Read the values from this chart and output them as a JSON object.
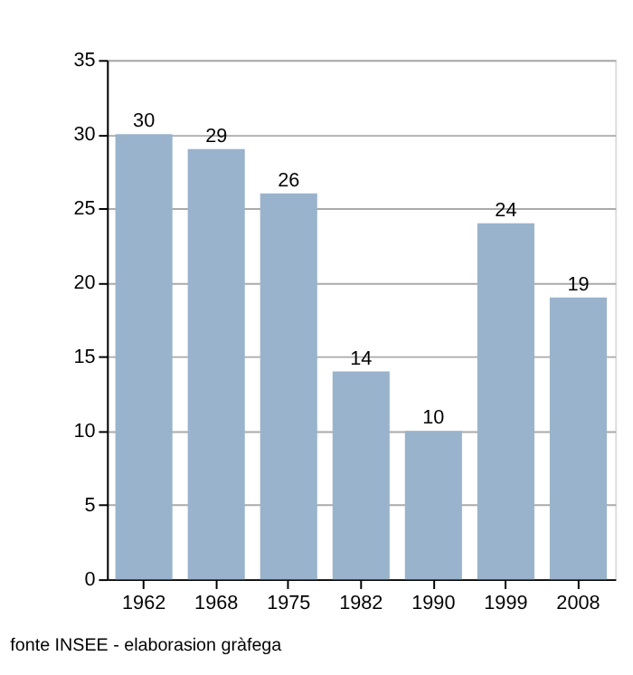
{
  "chart_data": {
    "type": "bar",
    "categories": [
      "1962",
      "1968",
      "1975",
      "1982",
      "1990",
      "1999",
      "2008"
    ],
    "values": [
      30,
      29,
      26,
      14,
      10,
      24,
      19
    ],
    "color": "#9ab3cc",
    "ylim": [
      0,
      35
    ],
    "yticks": [
      0,
      5,
      10,
      15,
      20,
      25,
      30,
      35
    ],
    "grid": "y",
    "data_labels": true,
    "annotations": [
      "fonte INSEE - elaborasion gràfega"
    ]
  }
}
